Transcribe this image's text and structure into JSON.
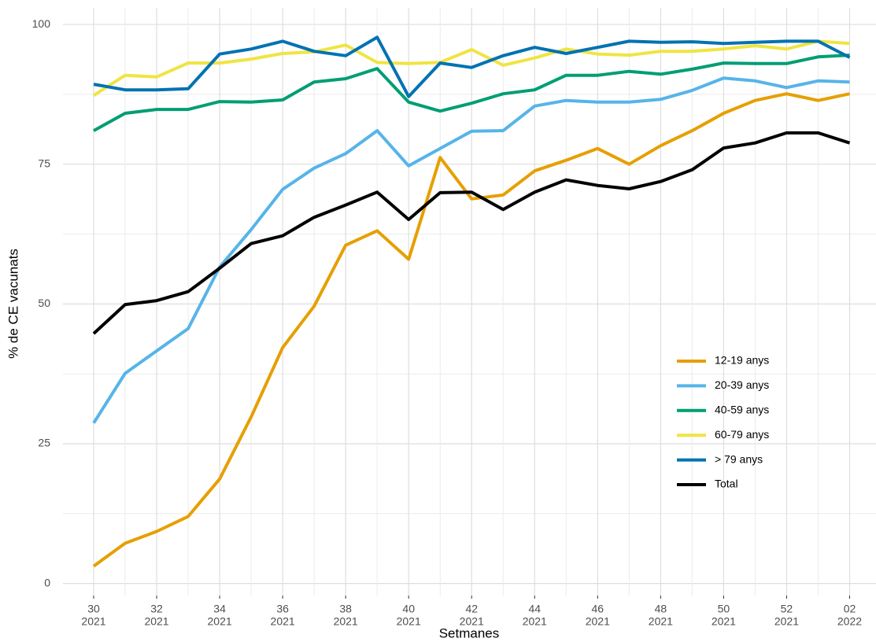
{
  "chart_data": {
    "type": "line",
    "x_label": "Setmanes",
    "y_label": "% de CE vacunats",
    "categories": [
      [
        "30",
        "2021"
      ],
      null,
      [
        "32",
        "2021"
      ],
      null,
      [
        "34",
        "2021"
      ],
      null,
      [
        "36",
        "2021"
      ],
      null,
      [
        "38",
        "2021"
      ],
      null,
      [
        "40",
        "2021"
      ],
      null,
      [
        "42",
        "2021"
      ],
      null,
      [
        "44",
        "2021"
      ],
      null,
      [
        "46",
        "2021"
      ],
      null,
      [
        "48",
        "2021"
      ],
      null,
      [
        "50",
        "2021"
      ],
      null,
      [
        "52",
        "2021"
      ],
      null,
      [
        "02",
        "2022"
      ]
    ],
    "ylim": [
      -1.6,
      102.4
    ],
    "yticks": [
      0,
      25,
      50,
      75,
      100
    ],
    "grid": true,
    "legend": "right",
    "series": [
      {
        "name": "12-19 anys",
        "color": "#E69F00",
        "values": [
          3.1,
          7.2,
          9.3,
          12.0,
          18.7,
          29.8,
          42.2,
          49.6,
          60.5,
          63.1,
          58.0,
          76.2,
          68.8,
          69.5,
          73.8,
          75.7,
          77.8,
          75.0,
          78.3,
          81.0,
          84.1,
          86.4,
          87.6,
          86.4,
          87.6
        ]
      },
      {
        "name": "20-39 anys",
        "color": "#56B4E9",
        "values": [
          28.7,
          37.6,
          41.6,
          45.6,
          56.6,
          63.3,
          70.5,
          74.3,
          76.9,
          81.0,
          74.7,
          77.8,
          80.9,
          81.0,
          85.4,
          86.4,
          86.1,
          86.1,
          86.6,
          88.2,
          90.4,
          89.9,
          88.7,
          89.9,
          89.7
        ]
      },
      {
        "name": "40-59 anys",
        "color": "#009E73",
        "values": [
          81.0,
          84.1,
          84.8,
          84.8,
          86.2,
          86.1,
          86.5,
          89.7,
          90.3,
          92.1,
          86.1,
          84.5,
          85.9,
          87.6,
          88.3,
          90.9,
          90.9,
          91.6,
          91.1,
          92.0,
          93.1,
          93.0,
          93.0,
          94.2,
          94.5
        ]
      },
      {
        "name": "60-79 anys",
        "color": "#F0E442",
        "values": [
          87.3,
          90.9,
          90.6,
          93.1,
          93.1,
          93.8,
          94.8,
          95.1,
          96.3,
          93.2,
          93.0,
          93.2,
          95.5,
          92.7,
          94.0,
          95.6,
          94.7,
          94.5,
          95.2,
          95.2,
          95.6,
          96.2,
          95.6,
          97.0,
          96.6
        ]
      },
      {
        "name": "> 79 anys",
        "color": "#0072B2",
        "values": [
          89.3,
          88.3,
          88.3,
          88.5,
          94.7,
          95.6,
          97.0,
          95.2,
          94.4,
          97.7,
          87.1,
          93.1,
          92.3,
          94.4,
          95.9,
          94.8,
          95.9,
          97.0,
          96.8,
          96.9,
          96.6,
          96.8,
          97.0,
          97.0,
          94.1
        ]
      },
      {
        "name": "Total",
        "color": "#000000",
        "values": [
          44.7,
          49.9,
          50.6,
          52.2,
          56.4,
          60.8,
          62.2,
          65.5,
          67.7,
          70.0,
          65.1,
          69.9,
          70.0,
          66.9,
          70.0,
          72.2,
          71.2,
          70.6,
          71.9,
          74.0,
          77.9,
          78.8,
          80.6,
          80.6,
          78.8
        ]
      }
    ]
  }
}
